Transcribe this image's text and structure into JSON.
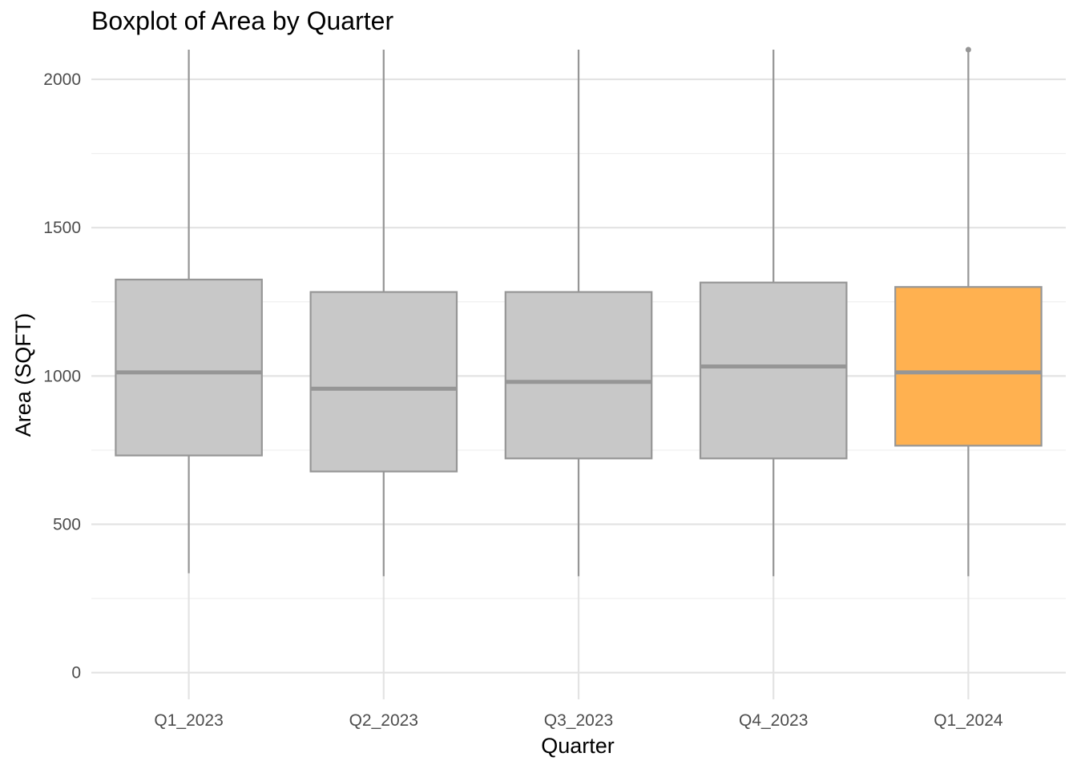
{
  "chart_data": {
    "type": "boxplot",
    "title": "Boxplot of Area by Quarter",
    "xlabel": "Quarter",
    "ylabel": "Area (SQFT)",
    "categories": [
      "Q1_2023",
      "Q2_2023",
      "Q3_2023",
      "Q4_2023",
      "Q1_2024"
    ],
    "boxes": [
      {
        "category": "Q1_2023",
        "whisker_low": 335,
        "q1": 732,
        "median": 1012,
        "q3": 1325,
        "whisker_high": 2100,
        "highlight": false
      },
      {
        "category": "Q2_2023",
        "whisker_low": 325,
        "q1": 678,
        "median": 957,
        "q3": 1283,
        "whisker_high": 2100,
        "highlight": false
      },
      {
        "category": "Q3_2023",
        "whisker_low": 325,
        "q1": 722,
        "median": 980,
        "q3": 1283,
        "whisker_high": 2100,
        "highlight": false
      },
      {
        "category": "Q4_2023",
        "whisker_low": 325,
        "q1": 722,
        "median": 1032,
        "q3": 1315,
        "whisker_high": 2100,
        "highlight": false
      },
      {
        "category": "Q1_2024",
        "whisker_low": 325,
        "q1": 765,
        "median": 1012,
        "q3": 1300,
        "whisker_high": 2100,
        "highlight": true,
        "outliers": [
          2100
        ]
      }
    ],
    "y_ticks": [
      0,
      500,
      1000,
      1500,
      2000
    ],
    "ylim": [
      -90,
      2100
    ],
    "grid": true,
    "legend": "none",
    "colors": {
      "box_fill": "#c8c8c8",
      "highlight_fill": "#ffb150",
      "box_stroke": "#969696",
      "grid_major": "#e3e3e3",
      "grid_minor": "#efefef"
    }
  }
}
